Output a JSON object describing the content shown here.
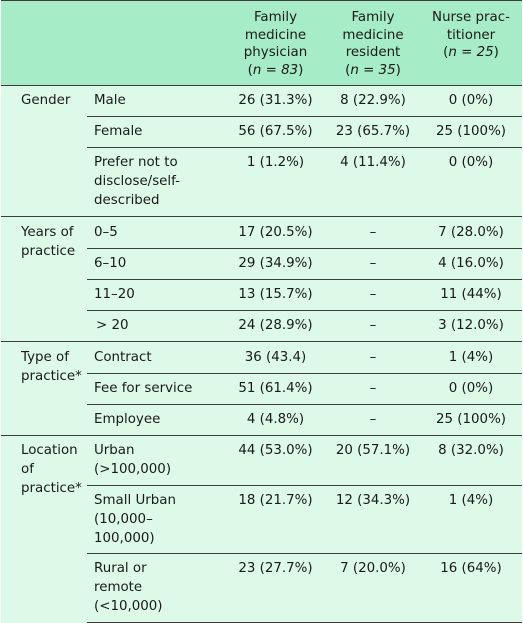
{
  "headers": {
    "col3": [
      "Family",
      "medicine",
      "physician",
      "n = 83"
    ],
    "col4": [
      "Family",
      "medicine",
      "resident",
      "n = 35"
    ],
    "col5": [
      "Nurse prac-",
      "titioner",
      "n = 25"
    ]
  },
  "rows": [
    {
      "group": "Gender",
      "label": "Male",
      "fmp": "26 (31.3%)",
      "fmr": "8 (22.9%)",
      "np": "0 (0%)"
    },
    {
      "label": "Female",
      "fmp": "56 (67.5%)",
      "fmr": "23 (65.7%)",
      "np": "25 (100%)"
    },
    {
      "label": "Prefer not to disclose/self-described",
      "fmp": "1 (1.2%)",
      "fmr": "4 (11.4%)",
      "np": "0 (0%)"
    },
    {
      "group": "Years of practice",
      "label": "0–5",
      "fmp": "17 (20.5%)",
      "fmr": "–",
      "np": "7 (28.0%)"
    },
    {
      "label": "6–10",
      "fmp": "29 (34.9%)",
      "fmr": "–",
      "np": "4 (16.0%)"
    },
    {
      "label": "11–20",
      "fmp": "13 (15.7%)",
      "fmr": "–",
      "np": "11 (44%)"
    },
    {
      "label": "> 20",
      "fmp": "24 (28.9%)",
      "fmr": "–",
      "np": "3 (12.0%)"
    },
    {
      "group": "Type of practice*",
      "label": "Contract",
      "fmp": "36 (43.4)",
      "fmr": "–",
      "np": "1 (4%)"
    },
    {
      "label": "Fee for service",
      "fmp": "51 (61.4%)",
      "fmr": "–",
      "np": "0 (0%)"
    },
    {
      "label": "Employee",
      "fmp": "4 (4.8%)",
      "fmr": "–",
      "np": "25 (100%)"
    },
    {
      "group": "Location of practice*",
      "label": "Urban (>100,000)",
      "fmp": "44 (53.0%)",
      "fmr": "20 (57.1%)",
      "np": "8 (32.0%)"
    },
    {
      "label": "Small Urban (10,000–100,000)",
      "fmp": "18 (21.7%)",
      "fmr": "12 (34.3%)",
      "np": "1 (4%)"
    },
    {
      "label": "Rural or remote (<10,000)",
      "fmp": "23 (27.7%)",
      "fmr": "7 (20.0%)",
      "np": "16 (64%)"
    }
  ]
}
